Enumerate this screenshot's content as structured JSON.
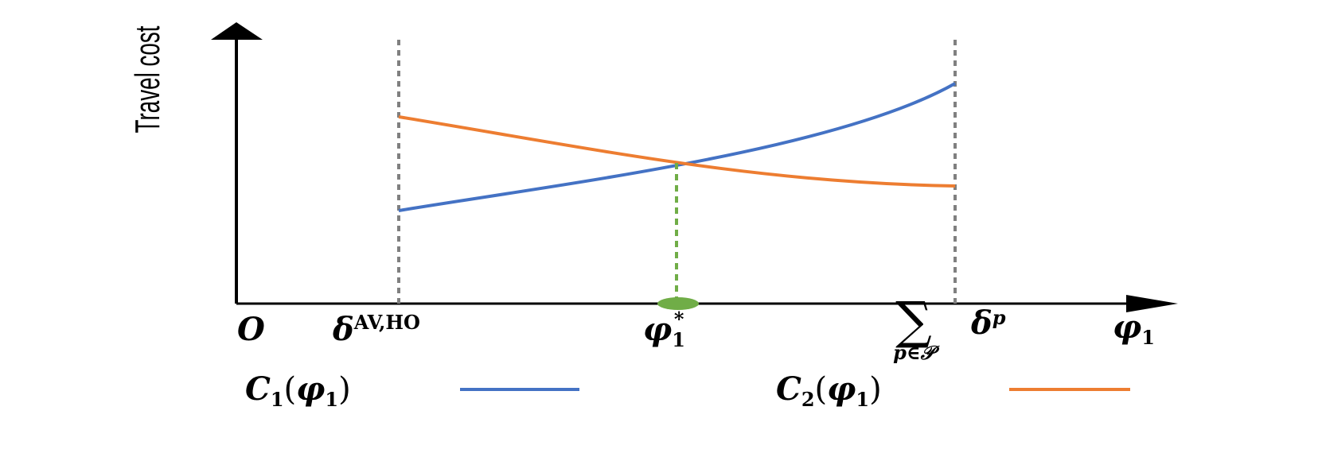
{
  "axes": {
    "y_label": "Travel cost",
    "origin": "O",
    "x_label": {
      "base": "φ",
      "sub": "1"
    }
  },
  "x_marks": [
    {
      "base": "δ",
      "sup": "AV,HO"
    },
    {
      "base": "φ",
      "sub": "1",
      "sup": "*"
    },
    {
      "operator": "∑",
      "under": "p∈𝒫",
      "base": "δ",
      "sup": "p"
    }
  ],
  "legend": [
    {
      "func": "C",
      "sub": "1",
      "open": "(",
      "var": "φ",
      "var_sub": "1",
      "close": ")"
    },
    {
      "func": "C",
      "sub": "2",
      "open": "(",
      "var": "φ",
      "var_sub": "1",
      "close": ")"
    }
  ]
}
